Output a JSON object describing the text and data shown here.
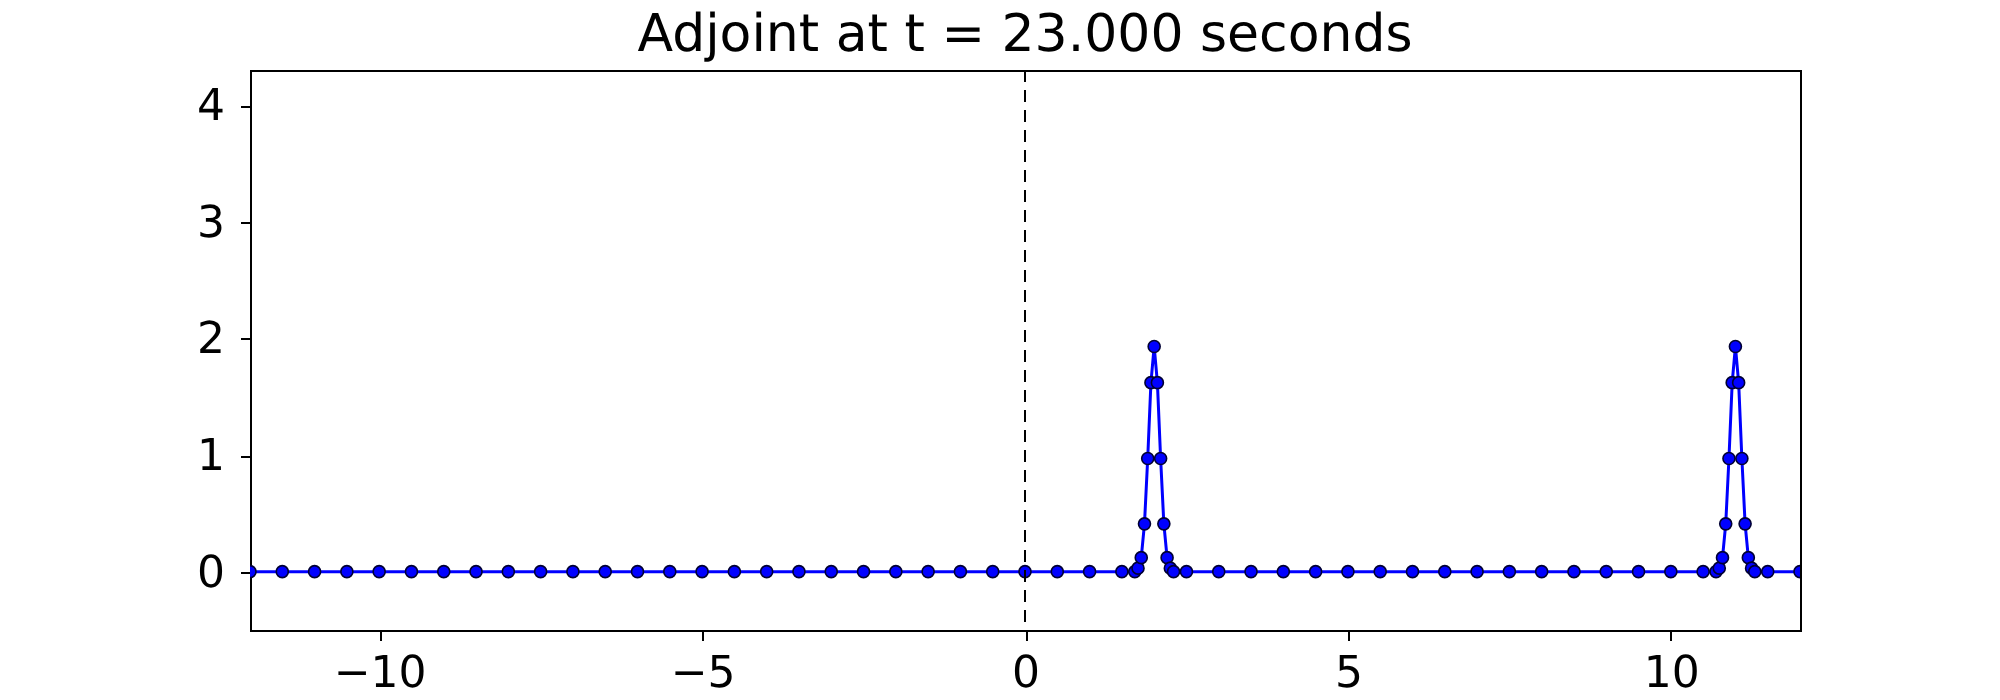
{
  "chart_data": {
    "type": "line",
    "title": "Adjoint at t = 23.000 seconds",
    "x": [
      -12,
      -11.5,
      -11,
      -10.5,
      -10,
      -9.5,
      -9,
      -8.5,
      -8,
      -7.5,
      -7,
      -6.5,
      -6,
      -5.5,
      -5,
      -4.5,
      -4,
      -3.5,
      -3,
      -2.5,
      -2,
      -1.5,
      -1,
      -0.5,
      0,
      0.5,
      1,
      1.5,
      1.7,
      1.75,
      1.8,
      1.85,
      1.9,
      1.95,
      2,
      2.05,
      2.1,
      2.15,
      2.2,
      2.25,
      2.3,
      2.5,
      3,
      3.5,
      4,
      4.5,
      5,
      5.5,
      6,
      6.5,
      7,
      7.5,
      8,
      8.5,
      9,
      9.5,
      10,
      10.5,
      10.7,
      10.75,
      10.8,
      10.85,
      10.9,
      10.95,
      11,
      11.05,
      11.1,
      11.15,
      11.2,
      11.25,
      11.3,
      11.5,
      12
    ],
    "series": [
      {
        "color": "#0000ff",
        "values": [
          0,
          0,
          0,
          0,
          0,
          0,
          0,
          0,
          0,
          0,
          0,
          0,
          0,
          0,
          0,
          0,
          0,
          0,
          0,
          0,
          0,
          0,
          0,
          0,
          0,
          0,
          0,
          0,
          0,
          0.03,
          0.12,
          0.41,
          0.97,
          1.62,
          1.93,
          1.62,
          0.97,
          0.41,
          0.12,
          0.03,
          0,
          0,
          0,
          0,
          0,
          0,
          0,
          0,
          0,
          0,
          0,
          0,
          0,
          0,
          0,
          0,
          0,
          0,
          0,
          0.03,
          0.12,
          0.41,
          0.97,
          1.62,
          1.93,
          1.62,
          0.97,
          0.41,
          0.12,
          0.03,
          0,
          0,
          0
        ]
      }
    ],
    "xlim": [
      -12,
      12
    ],
    "ylim": [
      -0.5,
      4.3
    ],
    "xticks": [
      {
        "value": -10,
        "label": "−10"
      },
      {
        "value": -5,
        "label": "−5"
      },
      0,
      5,
      10
    ],
    "yticks": [
      0,
      1,
      2,
      3,
      4
    ],
    "marker": "circle",
    "line_style": "solid",
    "grid": false,
    "ref_lines": [
      {
        "axis": "x",
        "value": 0,
        "line_style": "dashed",
        "color": "#000000"
      }
    ]
  }
}
